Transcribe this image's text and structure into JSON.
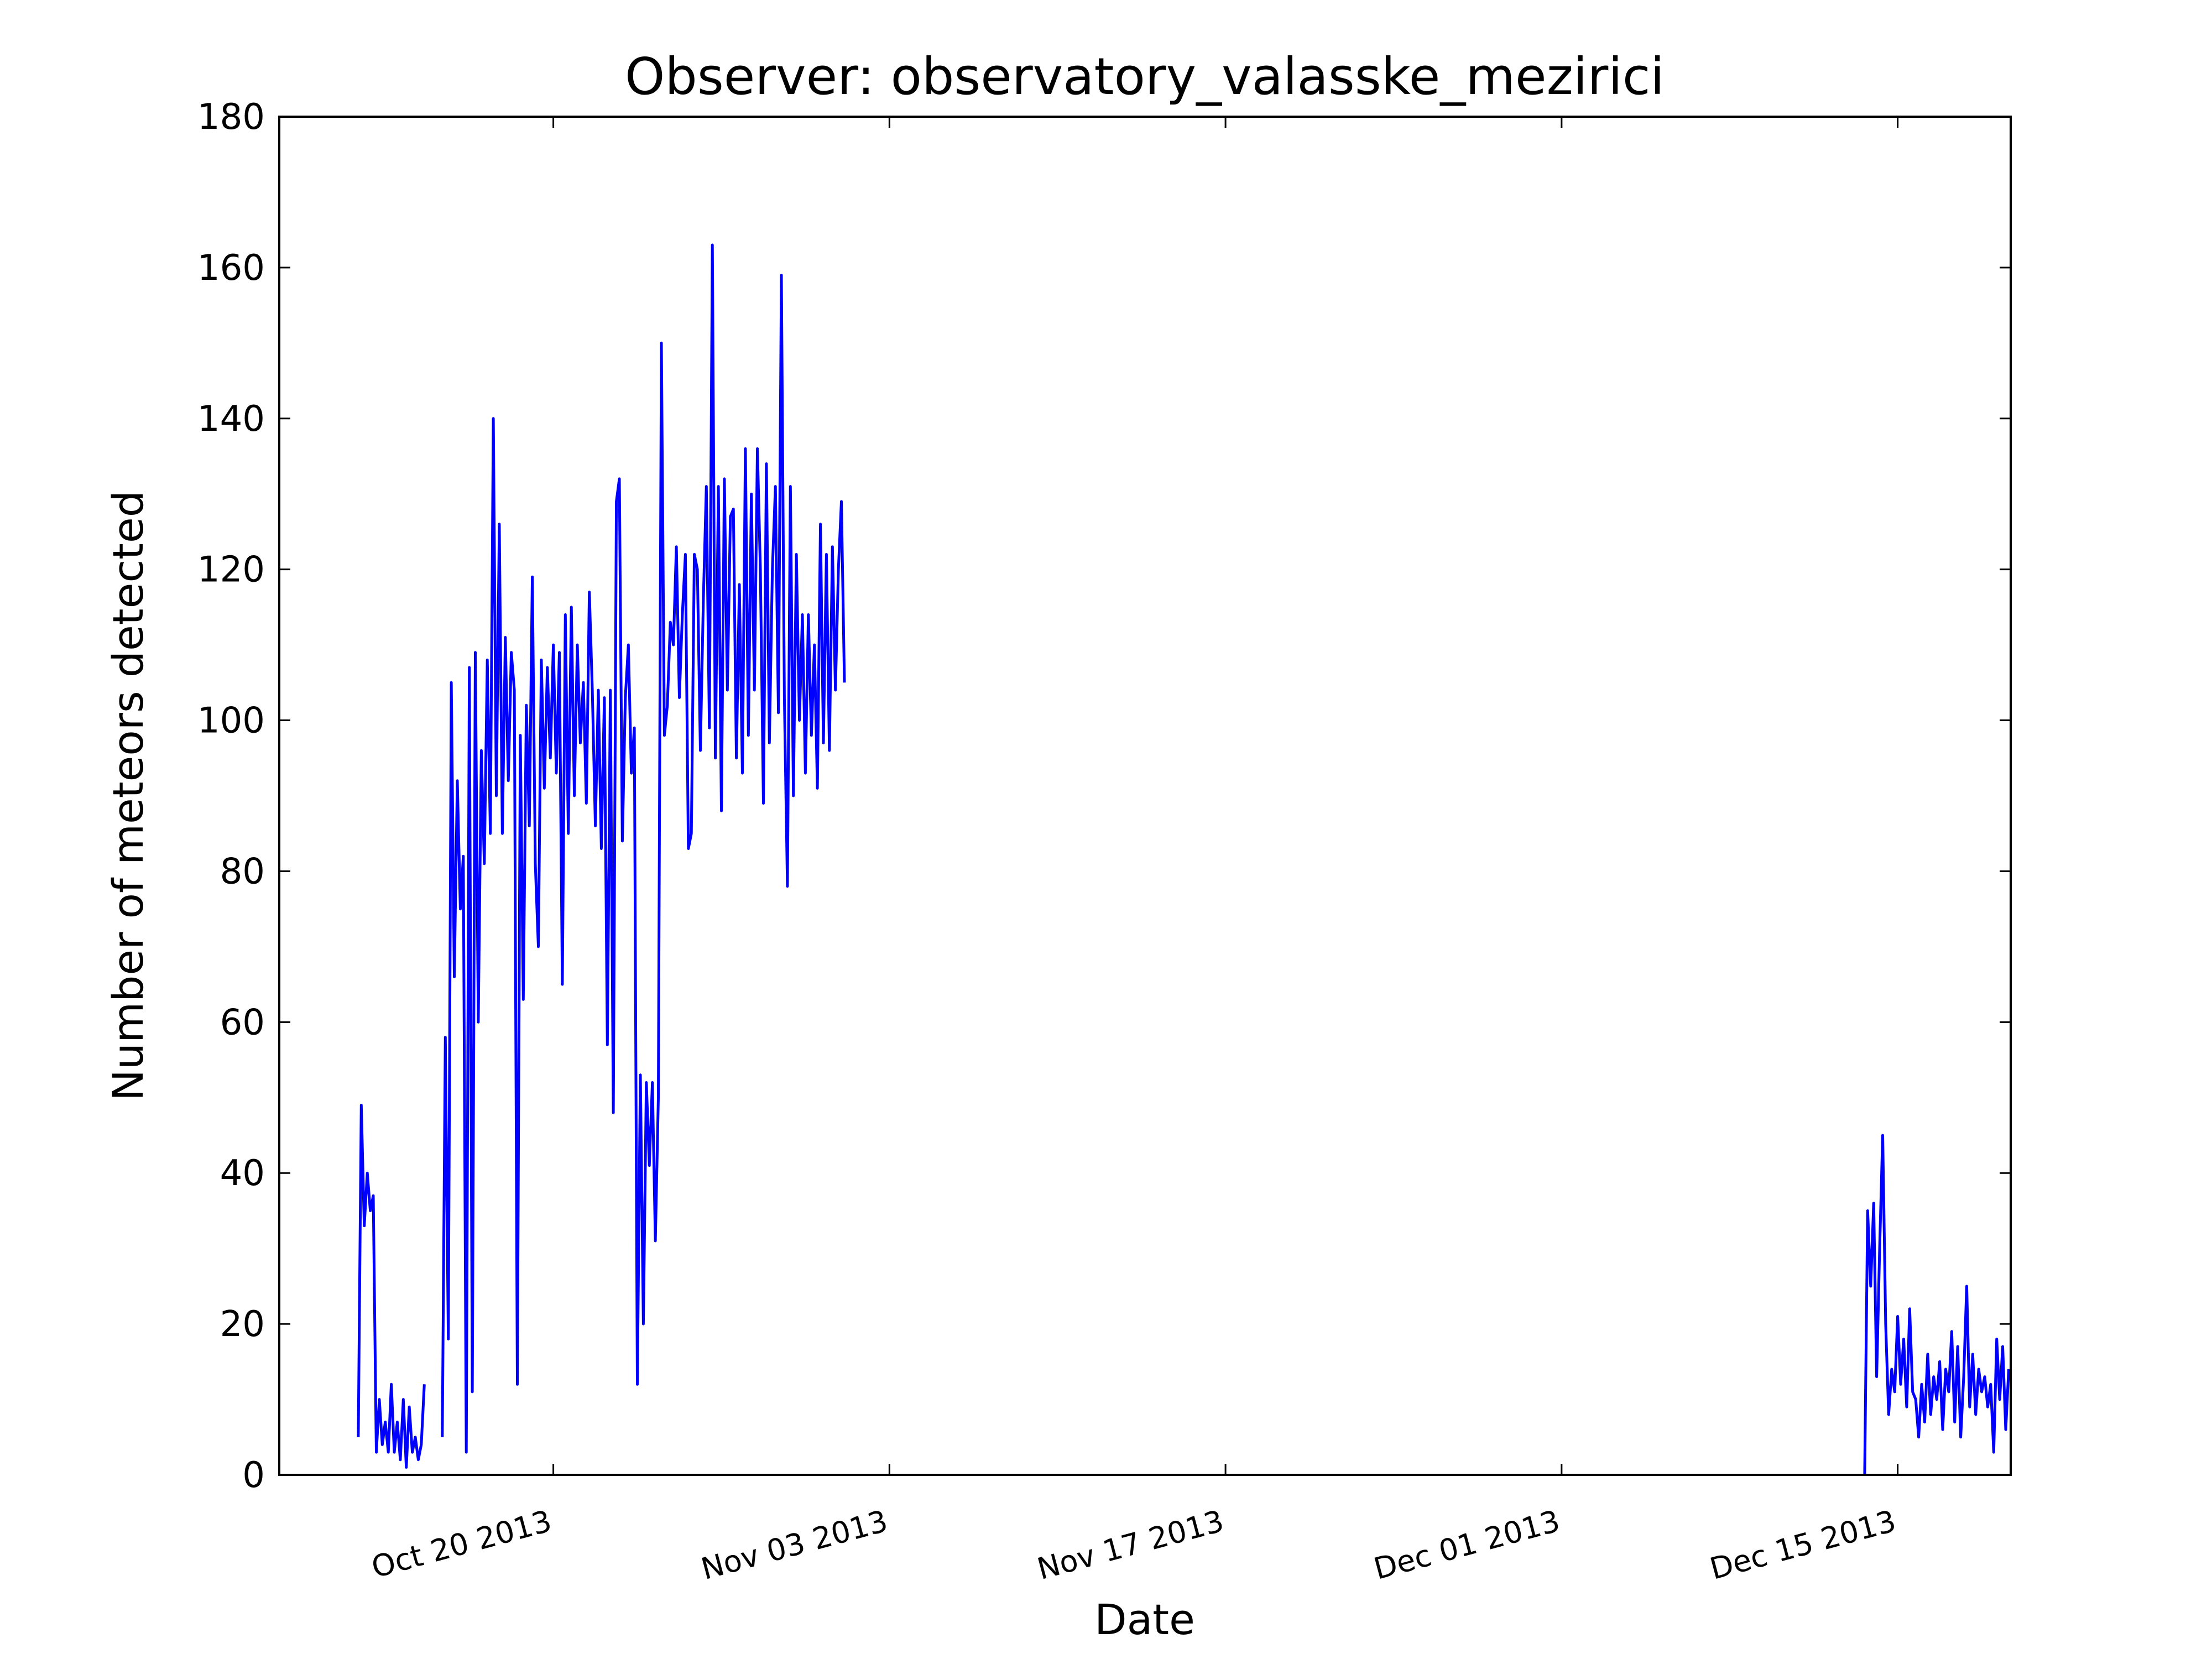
{
  "chart_data": {
    "type": "line",
    "title": "Observer: observatory_valasske_mezirici",
    "xlabel": "Date",
    "ylabel": "Number of meteors detected",
    "color": "#0000ff",
    "x": [
      "2013-10-11T21:00",
      "2013-10-12T00:00",
      "2013-10-12T03:00",
      "2013-10-12T06:00",
      "2013-10-12T09:00",
      "2013-10-12T12:00",
      "2013-10-12T15:00",
      "2013-10-12T18:00",
      "2013-10-12T21:00",
      "2013-10-13T00:00",
      "2013-10-13T03:00",
      "2013-10-13T06:00",
      "2013-10-13T09:00",
      "2013-10-13T12:00",
      "2013-10-13T15:00",
      "2013-10-13T18:00",
      "2013-10-13T21:00",
      "2013-10-14T00:00",
      "2013-10-14T03:00",
      "2013-10-14T06:00",
      "2013-10-14T09:00",
      "2013-10-14T12:00",
      "2013-10-14T15:00",
      "2013-10-14T21:00",
      "2013-10-15T09:00",
      "2013-10-15T12:00",
      "2013-10-15T15:00",
      "2013-10-15T18:00",
      "2013-10-15T21:00",
      "2013-10-16T00:00",
      "2013-10-16T03:00",
      "2013-10-16T06:00",
      "2013-10-16T09:00",
      "2013-10-16T12:00",
      "2013-10-16T15:00",
      "2013-10-16T18:00",
      "2013-10-16T21:00",
      "2013-10-17T00:00",
      "2013-10-17T03:00",
      "2013-10-17T06:00",
      "2013-10-17T09:00",
      "2013-10-17T12:00",
      "2013-10-17T15:00",
      "2013-10-17T18:00",
      "2013-10-17T21:00",
      "2013-10-18T00:00",
      "2013-10-18T03:00",
      "2013-10-18T06:00",
      "2013-10-18T09:00",
      "2013-10-18T12:00",
      "2013-10-18T15:00",
      "2013-10-18T18:00",
      "2013-10-18T21:00",
      "2013-10-19T00:00",
      "2013-10-19T03:00",
      "2013-10-19T06:00",
      "2013-10-19T09:00",
      "2013-10-19T12:00",
      "2013-10-19T15:00",
      "2013-10-19T18:00",
      "2013-10-19T21:00",
      "2013-10-20T00:00",
      "2013-10-20T03:00",
      "2013-10-20T06:00",
      "2013-10-20T09:00",
      "2013-10-20T12:00",
      "2013-10-20T15:00",
      "2013-10-20T18:00",
      "2013-10-20T21:00",
      "2013-10-21T00:00",
      "2013-10-21T03:00",
      "2013-10-21T06:00",
      "2013-10-21T09:00",
      "2013-10-21T12:00",
      "2013-10-21T15:00",
      "2013-10-21T18:00",
      "2013-10-21T21:00",
      "2013-10-22T00:00",
      "2013-10-22T03:00",
      "2013-10-22T06:00",
      "2013-10-22T09:00",
      "2013-10-22T12:00",
      "2013-10-22T15:00",
      "2013-10-22T18:00",
      "2013-10-22T21:00",
      "2013-10-23T00:00",
      "2013-10-23T03:00",
      "2013-10-23T06:00",
      "2013-10-23T09:00",
      "2013-10-23T12:00",
      "2013-10-23T15:00",
      "2013-10-23T18:00",
      "2013-10-23T21:00",
      "2013-10-24T00:00",
      "2013-10-24T03:00",
      "2013-10-24T06:00",
      "2013-10-24T09:00",
      "2013-10-24T12:00",
      "2013-10-24T15:00",
      "2013-10-24T18:00",
      "2013-10-24T21:00",
      "2013-10-25T00:00",
      "2013-10-25T03:00",
      "2013-10-25T06:00",
      "2013-10-25T09:00",
      "2013-10-25T12:00",
      "2013-10-25T15:00",
      "2013-10-25T18:00",
      "2013-10-25T21:00",
      "2013-10-26T00:00",
      "2013-10-26T03:00",
      "2013-10-26T06:00",
      "2013-10-26T09:00",
      "2013-10-26T12:00",
      "2013-10-26T15:00",
      "2013-10-26T18:00",
      "2013-10-26T21:00",
      "2013-10-27T00:00",
      "2013-10-27T03:00",
      "2013-10-27T06:00",
      "2013-10-27T09:00",
      "2013-10-27T12:00",
      "2013-10-27T15:00",
      "2013-10-27T18:00",
      "2013-10-27T21:00",
      "2013-10-28T00:00",
      "2013-10-28T03:00",
      "2013-10-28T06:00",
      "2013-10-28T09:00",
      "2013-10-28T12:00",
      "2013-10-28T15:00",
      "2013-10-28T18:00",
      "2013-10-28T21:00",
      "2013-10-29T00:00",
      "2013-10-29T03:00",
      "2013-10-29T06:00",
      "2013-10-29T09:00",
      "2013-10-29T12:00",
      "2013-10-29T15:00",
      "2013-10-29T18:00",
      "2013-10-29T21:00",
      "2013-10-30T00:00",
      "2013-10-30T03:00",
      "2013-10-30T06:00",
      "2013-10-30T09:00",
      "2013-10-30T12:00",
      "2013-10-30T15:00",
      "2013-10-30T18:00",
      "2013-10-30T21:00",
      "2013-10-31T00:00",
      "2013-10-31T03:00",
      "2013-10-31T06:00",
      "2013-10-31T09:00",
      "2013-10-31T12:00",
      "2013-10-31T15:00",
      "2013-10-31T18:00",
      "2013-10-31T21:00",
      "2013-11-01T00:00",
      "2013-11-01T03:00",
      "2013-11-01T12:00",
      "2013-12-13T15:00",
      "2013-12-13T18:00",
      "2013-12-13T21:00",
      "2013-12-14T00:00",
      "2013-12-14T03:00",
      "2013-12-14T06:00",
      "2013-12-14T09:00",
      "2013-12-14T12:00",
      "2013-12-14T15:00",
      "2013-12-14T18:00",
      "2013-12-14T21:00",
      "2013-12-15T00:00",
      "2013-12-15T03:00",
      "2013-12-15T06:00",
      "2013-12-15T09:00",
      "2013-12-15T12:00",
      "2013-12-15T15:00",
      "2013-12-15T18:00",
      "2013-12-15T21:00",
      "2013-12-16T00:00",
      "2013-12-16T03:00",
      "2013-12-16T06:00",
      "2013-12-16T09:00",
      "2013-12-16T12:00",
      "2013-12-16T15:00",
      "2013-12-16T18:00",
      "2013-12-16T21:00",
      "2013-12-17T00:00",
      "2013-12-17T03:00",
      "2013-12-17T06:00",
      "2013-12-17T09:00",
      "2013-12-17T12:00",
      "2013-12-17T15:00",
      "2013-12-17T18:00",
      "2013-12-17T21:00",
      "2013-12-18T00:00",
      "2013-12-18T03:00",
      "2013-12-18T06:00",
      "2013-12-18T09:00",
      "2013-12-18T12:00",
      "2013-12-18T15:00",
      "2013-12-18T18:00",
      "2013-12-18T21:00",
      "2013-12-19T00:00",
      "2013-12-19T03:00",
      "2013-12-19T06:00",
      "2013-12-19T09:00",
      "2013-12-19T12:00",
      "2013-12-19T15:00"
    ],
    "values": [
      5,
      49,
      33,
      40,
      35,
      37,
      3,
      10,
      4,
      7,
      3,
      12,
      3,
      7,
      2,
      10,
      1,
      9,
      3,
      5,
      2,
      4,
      12,
      null,
      5,
      58,
      18,
      105,
      66,
      92,
      75,
      82,
      3,
      107,
      11,
      109,
      60,
      96,
      81,
      108,
      85,
      140,
      90,
      126,
      85,
      111,
      92,
      109,
      104,
      12,
      98,
      63,
      102,
      86,
      119,
      81,
      70,
      108,
      91,
      107,
      95,
      110,
      93,
      109,
      65,
      114,
      85,
      115,
      90,
      110,
      97,
      105,
      89,
      117,
      104,
      86,
      104,
      83,
      103,
      57,
      104,
      48,
      129,
      132,
      84,
      103,
      110,
      93,
      99,
      12,
      53,
      20,
      52,
      41,
      52,
      31,
      50,
      150,
      98,
      102,
      113,
      110,
      123,
      103,
      114,
      122,
      83,
      85,
      122,
      120,
      96,
      116,
      131,
      99,
      163,
      95,
      131,
      88,
      132,
      104,
      127,
      128,
      95,
      118,
      93,
      136,
      98,
      130,
      104,
      136,
      120,
      89,
      134,
      97,
      120,
      131,
      101,
      159,
      103,
      78,
      131,
      90,
      122,
      100,
      114,
      93,
      114,
      98,
      110,
      91,
      126,
      97,
      122,
      96,
      123,
      104,
      120,
      129,
      105,
      null,
      0,
      35,
      25,
      36,
      13,
      30,
      45,
      20,
      8,
      14,
      11,
      21,
      12,
      18,
      9,
      22,
      11,
      10,
      5,
      12,
      7,
      16,
      8,
      13,
      10,
      15,
      6,
      14,
      11,
      19,
      7,
      17,
      5,
      13,
      25,
      9,
      16,
      8,
      14,
      11,
      13,
      9,
      12,
      3,
      18,
      10,
      17,
      6,
      14
    ],
    "xlim": [
      "2013-10-08T14:00",
      "2013-12-19T17:00"
    ],
    "xticks": [
      {
        "value": "2013-10-20",
        "label": "Oct 20 2013"
      },
      {
        "value": "2013-11-03",
        "label": "Nov 03 2013"
      },
      {
        "value": "2013-11-17",
        "label": "Nov 17 2013"
      },
      {
        "value": "2013-12-01",
        "label": "Dec 01 2013"
      },
      {
        "value": "2013-12-15",
        "label": "Dec 15 2013"
      }
    ],
    "ylim": [
      0,
      180
    ],
    "yticks": [
      0,
      20,
      40,
      60,
      80,
      100,
      120,
      140,
      160,
      180
    ]
  }
}
